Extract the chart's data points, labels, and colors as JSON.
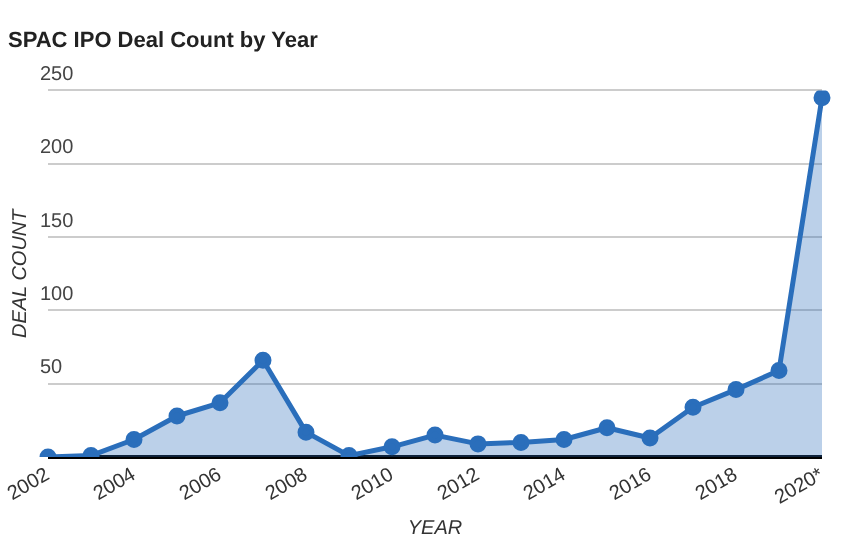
{
  "chart_data": {
    "type": "area",
    "title": "SPAC IPO Deal Count by Year",
    "xlabel": "YEAR",
    "ylabel": "DEAL COUNT",
    "categories": [
      "2002",
      null,
      "2004",
      null,
      "2006",
      null,
      "2008",
      null,
      "2010",
      null,
      "2012",
      null,
      "2014",
      null,
      "2016",
      null,
      "2018",
      null,
      "2020*"
    ],
    "series": [
      {
        "color": "#2a6ebb",
        "values": [
          0,
          1,
          12,
          28,
          37,
          66,
          17,
          1,
          7,
          15,
          9,
          10,
          12,
          20,
          13,
          34,
          46,
          59,
          245
        ]
      }
    ],
    "ylim": [
      0,
      250
    ],
    "yticks": [
      {
        "value": 0,
        "label": null
      },
      50,
      100,
      150,
      200,
      250
    ],
    "grid": "y",
    "legend": false,
    "marker": "circle"
  }
}
